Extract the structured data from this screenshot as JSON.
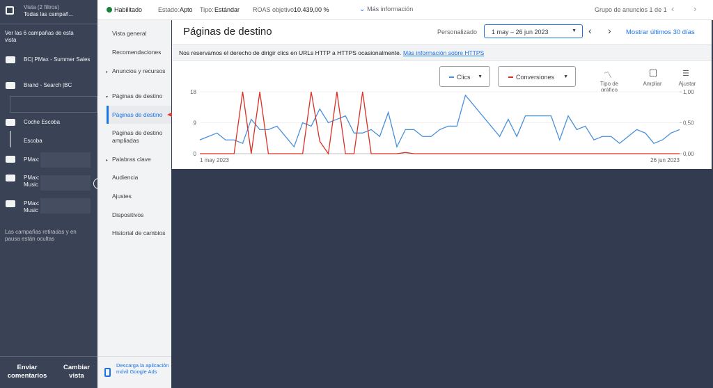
{
  "top_bar": {
    "status": "Habilitado",
    "state_label": "Estado:",
    "state_value": "Apto",
    "type_label": "Tipo:",
    "type_value": "Estándar",
    "roas_label": "ROAS objetivo:",
    "roas_value": "10.439,00 %",
    "more_info": "Más información",
    "ad_group_pager": "Grupo de anuncios 1 de 1"
  },
  "sidebar": {
    "view_title": "Vista (2 filtros)",
    "view_subtitle": "Todas las campañ...",
    "see_all": "Ver las 6 campañas de esta vista",
    "campaigns": [
      "BC| PMax - Summer Sales",
      "Brand - Search |BC",
      "Coche Escoba",
      "Escoba",
      "PMax:",
      "PMax: Music",
      "PMax: Music"
    ],
    "hidden_note": "Las campañas retiradas y en pausa están ocultas",
    "feedback": "Enviar comentarios",
    "change_view": "Cambiar vista"
  },
  "nav": {
    "items": [
      "Vista general",
      "Recomendaciones",
      "Anuncios y recursos",
      "Páginas de destino",
      "Páginas de destino",
      "Páginas de destino ampliadas",
      "Palabras clave",
      "Audiencia",
      "Ajustes",
      "Dispositivos",
      "Historial de cambios"
    ],
    "app_download": "Descarga la aplicación móvil Google Ads"
  },
  "header": {
    "title": "Páginas de destino",
    "range_type": "Personalizado",
    "date_range": "1 may – 26 jun 2023",
    "show_last": "Mostrar últimos 30 días"
  },
  "notice": {
    "text": "Nos reservamos el derecho de dirigir clics en URLs HTTP a HTTPS ocasionalmente.",
    "link": "Más información sobre HTTPS"
  },
  "chart_controls": {
    "chart_type": "Tipo de gráfico",
    "expand": "Ampliar",
    "adjust": "Ajustar"
  },
  "chart_data": {
    "type": "line",
    "categories": [
      "1 may 2023",
      null,
      null,
      null,
      null,
      null,
      null,
      null,
      null,
      null,
      null,
      null,
      null,
      null,
      null,
      null,
      null,
      null,
      null,
      null,
      null,
      null,
      null,
      null,
      null,
      null,
      null,
      null,
      null,
      null,
      null,
      null,
      null,
      null,
      null,
      null,
      null,
      null,
      null,
      null,
      null,
      null,
      null,
      null,
      null,
      null,
      null,
      null,
      null,
      null,
      null,
      null,
      null,
      null,
      null,
      null,
      "26 jun 2023"
    ],
    "series": [
      {
        "name": "Clics",
        "color": "#4a90d9",
        "values": [
          4,
          5,
          6,
          4,
          4,
          3,
          10,
          7,
          7,
          8,
          5,
          2,
          9,
          8,
          13,
          9,
          10,
          11,
          6,
          6,
          7,
          5,
          12,
          2,
          7,
          7,
          5,
          5,
          7,
          8,
          8,
          17,
          14,
          11,
          8,
          5,
          10,
          5,
          11,
          11,
          11,
          11,
          4,
          11,
          7,
          8,
          4,
          5,
          5,
          3,
          5,
          7,
          6,
          3,
          4,
          6,
          7
        ]
      },
      {
        "name": "Conversiones",
        "color": "#d93025",
        "axis": "y2",
        "values": [
          0,
          0,
          0,
          0,
          0,
          1,
          0,
          1,
          0,
          0,
          0,
          0,
          0,
          1,
          0.2,
          0,
          1,
          0,
          0,
          1,
          0,
          0,
          0,
          0,
          0.02,
          0,
          0,
          0,
          0,
          0,
          0,
          0,
          0,
          0,
          0,
          0,
          0,
          0,
          0,
          0,
          0,
          0,
          0,
          0,
          0,
          0,
          0,
          0,
          0,
          0,
          0,
          0,
          0,
          0,
          0,
          0,
          0
        ]
      }
    ],
    "ylim": [
      0,
      18
    ],
    "yticks": [
      0,
      9,
      18
    ],
    "y2lim": [
      0,
      1
    ],
    "y2ticks": [
      {
        "value": 0,
        "label": "0,00"
      },
      {
        "value": 0.5,
        "label": "0,50"
      },
      {
        "value": 1,
        "label": "1,00"
      }
    ],
    "grid": true
  }
}
